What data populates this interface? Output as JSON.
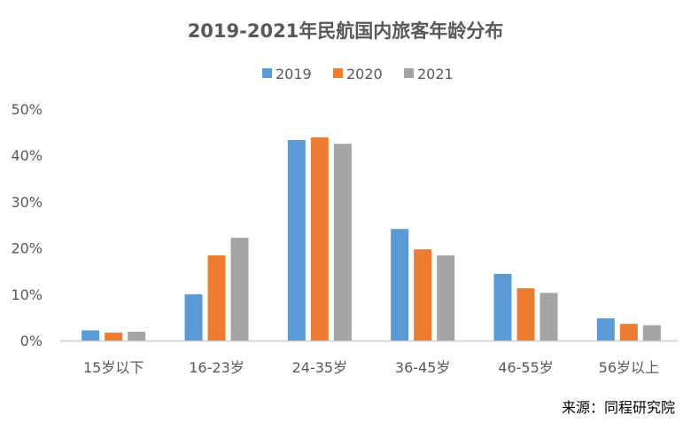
{
  "chart_data": {
    "type": "bar",
    "title": "2019-2021年民航国内旅客年龄分布",
    "categories": [
      "15岁以下",
      "16-23岁",
      "24-35岁",
      "36-45岁",
      "46-55岁",
      "56岁以上"
    ],
    "series": [
      {
        "name": "2019",
        "color": "#5B9BD5",
        "values": [
          2.2,
          10.0,
          43.3,
          24.1,
          14.4,
          4.8
        ]
      },
      {
        "name": "2020",
        "color": "#ED7D31",
        "values": [
          1.7,
          18.4,
          43.9,
          19.7,
          11.3,
          3.6
        ]
      },
      {
        "name": "2021",
        "color": "#A5A5A5",
        "values": [
          1.9,
          22.2,
          42.5,
          18.4,
          10.3,
          3.3
        ]
      }
    ],
    "yticks": [
      "0%",
      "10%",
      "20%",
      "30%",
      "40%",
      "50%"
    ],
    "ylim": [
      0,
      50
    ],
    "xlabel": "",
    "ylabel": "",
    "grid": false,
    "legend": "top-center",
    "source": "来源：同程研究院"
  }
}
